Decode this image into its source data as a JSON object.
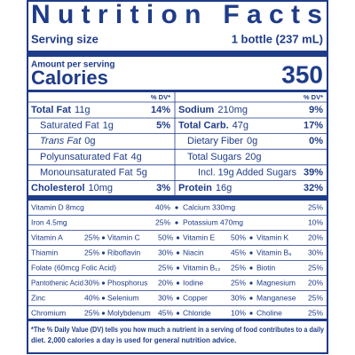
{
  "title": "Nutrition Facts",
  "serving": {
    "label": "Serving size",
    "value": "1 bottle (237 mL)"
  },
  "calories": {
    "header": "Amount per serving",
    "label": "Calories",
    "value": 350
  },
  "dv_headers": [
    "% DV*",
    "% DV*"
  ],
  "nutrients": [
    [
      {
        "name": "Total Fat",
        "amount": "11g",
        "dv": "14%",
        "level": 0
      },
      {
        "name": "Sodium",
        "amount": "210mg",
        "dv": "9%",
        "level": 0
      }
    ],
    [
      {
        "name": "Saturated Fat",
        "amount": "1g",
        "dv": "5%",
        "level": 1
      },
      {
        "name": "Total Carb.",
        "amount": "47g",
        "dv": "17%",
        "level": 0
      }
    ],
    [
      {
        "name": "Trans Fat",
        "amount": "0g",
        "level": 1,
        "italic": true
      },
      {
        "name": "Dietary Fiber",
        "amount": "0g",
        "dv": "0%",
        "level": 1
      }
    ],
    [
      {
        "name": "Polyunsaturated Fat",
        "amount": "4g",
        "level": 1
      },
      {
        "name": "Total Sugars",
        "amount": "20g",
        "level": 1
      }
    ],
    [
      {
        "name": "Monounsaturated Fat",
        "amount": "5g",
        "level": 1
      },
      {
        "name": "Incl. 19g Added Sugars",
        "dv": "39%",
        "level": 2
      }
    ],
    [
      {
        "name": "Cholesterol",
        "amount": "10mg",
        "dv": "3%",
        "level": 0
      },
      {
        "name": "Protein",
        "amount": "16g",
        "dv": "32%",
        "level": 0
      }
    ]
  ],
  "vitamins": [
    [
      {
        "name": "Vitamin D 8mcg",
        "dv": "40%"
      },
      {
        "name": "Calcium 330mg",
        "dv": "25%"
      }
    ],
    [
      {
        "name": "Iron 4.5mg",
        "dv": "25%"
      },
      {
        "name": "Potassium 470mg",
        "dv": "10%"
      }
    ],
    [
      {
        "name": "Vitamin A",
        "dv": "25%"
      },
      {
        "name": "Vitamin C",
        "dv": "50%"
      },
      {
        "name": "Vitamin E",
        "dv": "50%"
      },
      {
        "name": "Vitamin K",
        "dv": "20%"
      }
    ],
    [
      {
        "name": "Thiamin",
        "dv": "25%"
      },
      {
        "name": "Riboflavin",
        "dv": "30%"
      },
      {
        "name": "Niacin",
        "dv": "45%"
      },
      {
        "name": "Vitamin B₆",
        "dv": "30%"
      }
    ],
    [
      {
        "name": "Folate (60mcg Folic Acid)",
        "dv": "25%"
      },
      {
        "name": "Vitamin B₁₂",
        "dv": "25%"
      },
      {
        "name": "Biotin",
        "dv": "25%"
      }
    ],
    [
      {
        "name": "Pantothenic Acid",
        "dv": "30%"
      },
      {
        "name": "Phosphorus",
        "dv": "20%"
      },
      {
        "name": "Iodine",
        "dv": "25%"
      },
      {
        "name": "Magnesium",
        "dv": "20%"
      }
    ],
    [
      {
        "name": "Zinc",
        "dv": "40%"
      },
      {
        "name": "Selenium",
        "dv": "30%"
      },
      {
        "name": "Copper",
        "dv": "30%"
      },
      {
        "name": "Manganese",
        "dv": "25%"
      }
    ],
    [
      {
        "name": "Chromium",
        "dv": "25%"
      },
      {
        "name": "Molybdenum",
        "dv": "45%"
      },
      {
        "name": "Chloride",
        "dv": "10%"
      },
      {
        "name": "Choline",
        "dv": "25%"
      }
    ]
  ],
  "footnote": [
    "*The % Daily Value (DV) tells you how much a nutrient in a serving of food contributes to a daily",
    "diet. 2,000 calories a day is used for general nutrition advice."
  ]
}
